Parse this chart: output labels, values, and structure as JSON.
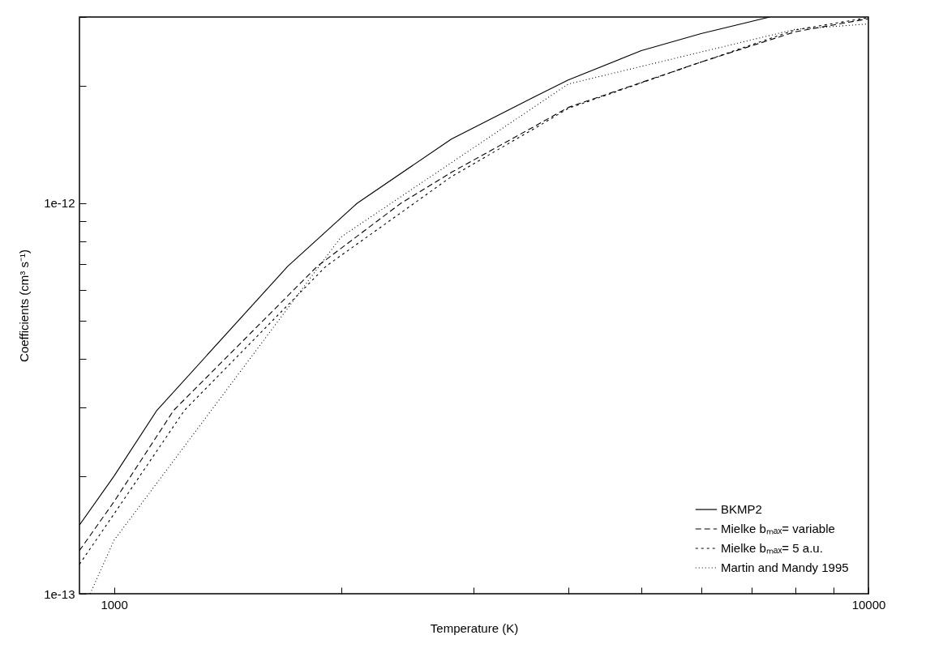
{
  "chart_data": {
    "type": "line",
    "xlabel": "Temperature (K)",
    "ylabel": "Coefficients (cm³ s⁻¹)",
    "log": "xy",
    "xlim": [
      900,
      10000
    ],
    "ylim": [
      1e-13,
      3e-12
    ],
    "xticks": [
      1000,
      {
        "value": 2000,
        "label": null
      },
      {
        "value": 3000,
        "label": null
      },
      {
        "value": 4000,
        "label": null
      },
      {
        "value": 5000,
        "label": null
      },
      {
        "value": 6000,
        "label": null
      },
      {
        "value": 7000,
        "label": null
      },
      {
        "value": 8000,
        "label": null
      },
      {
        "value": 9000,
        "label": null
      },
      10000
    ],
    "yticks": [
      {
        "value": 1e-13,
        "label": "1e-13"
      },
      {
        "value": 2e-13,
        "label": null
      },
      {
        "value": 3e-13,
        "label": null
      },
      {
        "value": 4e-13,
        "label": null
      },
      {
        "value": 5e-13,
        "label": null
      },
      {
        "value": 6e-13,
        "label": null
      },
      {
        "value": 7e-13,
        "label": null
      },
      {
        "value": 8e-13,
        "label": null
      },
      {
        "value": 9e-13,
        "label": null
      },
      {
        "value": 1e-12,
        "label": "1e-12"
      },
      {
        "value": 2e-12,
        "label": null
      },
      {
        "value": 3e-12,
        "label": null
      }
    ],
    "grid": false,
    "legend": "bottom right",
    "marker": "none",
    "series": [
      {
        "name": "BKMP2",
        "color": "#000000",
        "line_style": "solid",
        "x": [
          900,
          1000,
          1140,
          1700,
          2100,
          2800,
          3600,
          4000,
          5000,
          6000,
          7400
        ],
        "values": [
          1.5e-13,
          2e-13,
          2.95e-13,
          6.9e-13,
          1e-12,
          1.46e-12,
          1.87e-12,
          2.07e-12,
          2.46e-12,
          2.72e-12,
          3e-12
        ]
      },
      {
        "name": "Mielke bₘₐₓ= variable",
        "color": "#000000",
        "line_style": "dashed",
        "x": [
          900,
          1000,
          1200,
          1860,
          2400,
          2800,
          3600,
          4000,
          6000,
          8000,
          10000
        ],
        "values": [
          1.29e-13,
          1.72e-13,
          2.95e-13,
          6.9e-13,
          1e-12,
          1.2e-12,
          1.57e-12,
          1.76e-12,
          2.3e-12,
          2.75e-12,
          2.97e-12
        ]
      },
      {
        "name": "Mielke bₘₐₓ= 5 a.u.",
        "color": "#000000",
        "line_style": "dashed",
        "x": [
          900,
          1000,
          1240,
          1910,
          2500,
          2800,
          3600,
          4000,
          6000,
          8000,
          10000
        ],
        "values": [
          1.19e-13,
          1.6e-13,
          2.95e-13,
          6.9e-13,
          1e-12,
          1.17e-12,
          1.55e-12,
          1.75e-12,
          2.3e-12,
          2.78e-12,
          2.99e-12
        ]
      },
      {
        "name": "Martin and Mandy 1995",
        "color": "#000000",
        "line_style": "dotted",
        "x": [
          930,
          1000,
          2000,
          4000,
          8000,
          10000
        ],
        "values": [
          1e-13,
          1.37e-13,
          8.2e-13,
          2.02e-12,
          2.79e-12,
          2.88e-12
        ]
      }
    ]
  }
}
